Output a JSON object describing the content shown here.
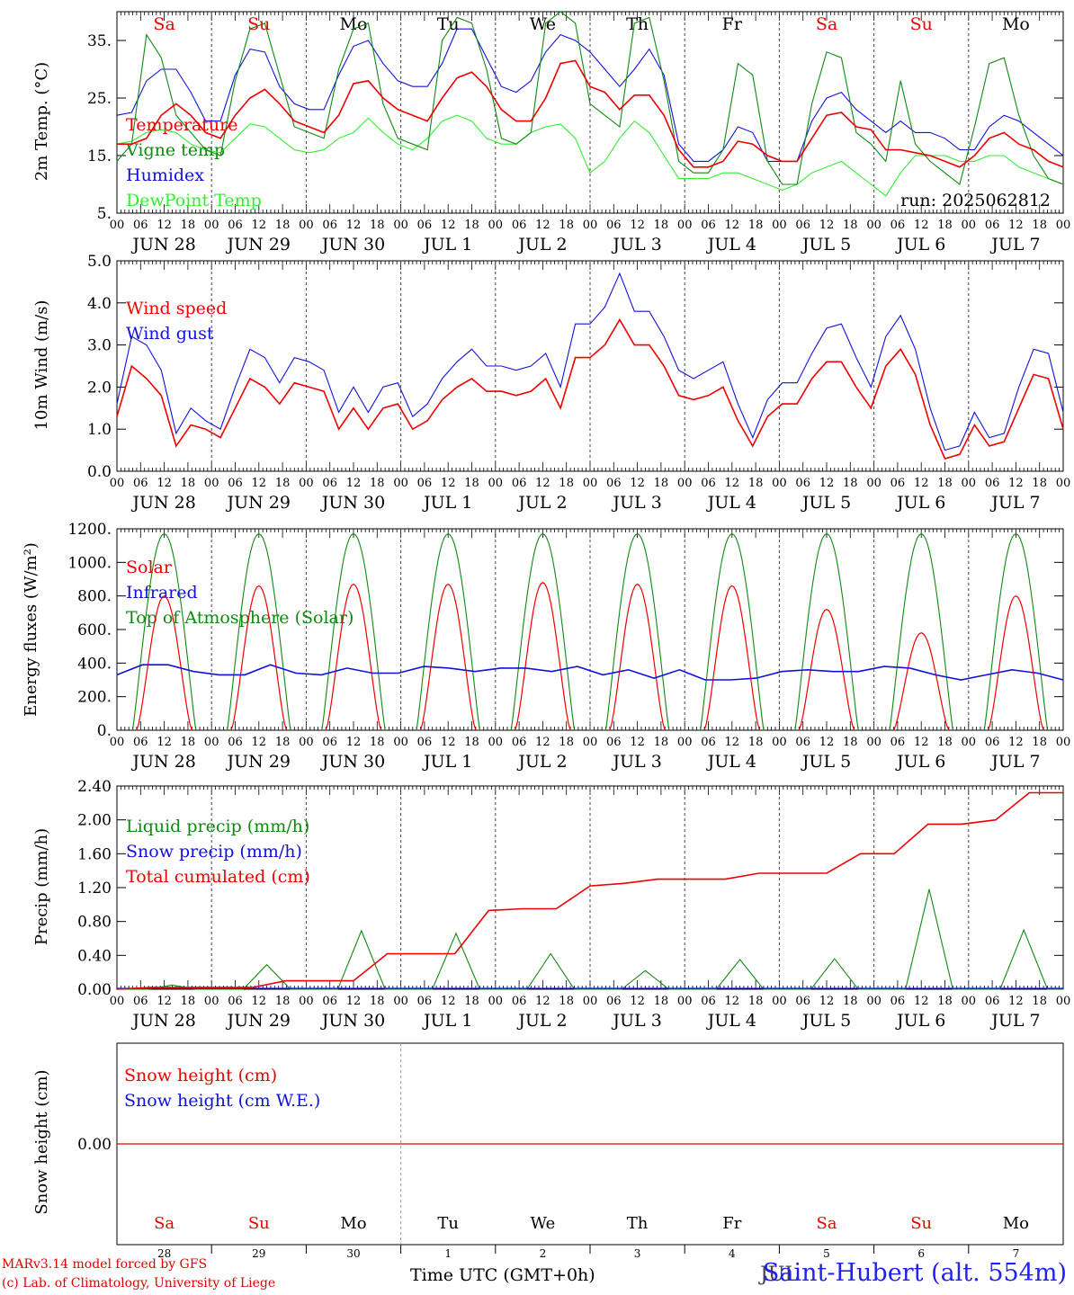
{
  "chart_data": [
    {
      "type": "line",
      "ylabel": "2m Temp. (°C)",
      "yticks": [
        "5.",
        "15.",
        "25.",
        "35."
      ],
      "ylim": [
        5,
        40
      ],
      "run_label": "run: 2025062812",
      "x_hours": "0..240 step 6 (hours from JUN 28 00 UTC)",
      "series": [
        {
          "name": "Temperature",
          "color": "#ee0000",
          "values": [
            17,
            17,
            18,
            22,
            24,
            22,
            19,
            18,
            22,
            25,
            26.5,
            24,
            21,
            20,
            19,
            22,
            27.5,
            28,
            25,
            23,
            22,
            21,
            25,
            28.5,
            29.5,
            27,
            23,
            21,
            21,
            25,
            31,
            31.5,
            27,
            26,
            23,
            25.5,
            25.5,
            22,
            16,
            13,
            13,
            14,
            17.5,
            17,
            15,
            14,
            14,
            18,
            22,
            22.5,
            20,
            19.5,
            16,
            16,
            15.5,
            15,
            14,
            13,
            15,
            18,
            19,
            17,
            16,
            14,
            13
          ]
        },
        {
          "name": "Vigne temp",
          "color": "#118811",
          "values": [
            14,
            17,
            36,
            32,
            22,
            19,
            16,
            15,
            28,
            37,
            38,
            29,
            20,
            19,
            18,
            30,
            37,
            38,
            24,
            18,
            17,
            16,
            35,
            39,
            38,
            30,
            18,
            17,
            19,
            38,
            40,
            38,
            24,
            22,
            20,
            38,
            39,
            28,
            14,
            12,
            12,
            16,
            31,
            29,
            14,
            10,
            10,
            24,
            33,
            32,
            19,
            17,
            14,
            28,
            17,
            14,
            12,
            10,
            20,
            31,
            32,
            22,
            15,
            11,
            10
          ]
        },
        {
          "name": "Humidex",
          "color": "#1111dd",
          "values": [
            22,
            22.5,
            28,
            30,
            30,
            26,
            21,
            21,
            29,
            33.5,
            33,
            27,
            24,
            23,
            23,
            29,
            34,
            35,
            31,
            28,
            27,
            27,
            31,
            37,
            37,
            32,
            27,
            26,
            28,
            33,
            36,
            35,
            33,
            30,
            27,
            30,
            33.5,
            29,
            17,
            14,
            14,
            16,
            20,
            19,
            14,
            14,
            14,
            21,
            25,
            26,
            23,
            21,
            19,
            21,
            19,
            19,
            18,
            16,
            16,
            20,
            22,
            21,
            19,
            17,
            15
          ]
        },
        {
          "name": "DewPoint Temp",
          "color": "#33ee33",
          "values": [
            17,
            17.5,
            19,
            19.5,
            19,
            17,
            16,
            15.5,
            18,
            20.5,
            20,
            18,
            16,
            15.5,
            16,
            18,
            19,
            21.5,
            19,
            17,
            16,
            18,
            21,
            22,
            21,
            18,
            17,
            17,
            19,
            20,
            20.5,
            18,
            12,
            14,
            18,
            21,
            19,
            15,
            11,
            11,
            11,
            12,
            12,
            11,
            10,
            9,
            10,
            12,
            13,
            14,
            12,
            10,
            8,
            12,
            15,
            15,
            15,
            14,
            14,
            15,
            15,
            13,
            12,
            11,
            10
          ]
        }
      ]
    },
    {
      "type": "line",
      "ylabel": "10m Wind (m/s)",
      "yticks": [
        "0.0",
        "1.0",
        "2.0",
        "3.0",
        "4.0",
        "5.0"
      ],
      "ylim": [
        0,
        5
      ],
      "series": [
        {
          "name": "Wind speed",
          "color": "#ee0000",
          "values": [
            1.3,
            2.5,
            2.2,
            1.8,
            0.6,
            1.1,
            1.0,
            0.8,
            1.5,
            2.2,
            2.0,
            1.6,
            2.1,
            2.0,
            1.9,
            1.0,
            1.5,
            1.0,
            1.5,
            1.6,
            1.0,
            1.2,
            1.7,
            2.0,
            2.2,
            1.9,
            1.9,
            1.8,
            1.9,
            2.2,
            1.5,
            2.7,
            2.7,
            3.0,
            3.6,
            3.0,
            3.0,
            2.5,
            1.8,
            1.7,
            1.8,
            2.0,
            1.2,
            0.6,
            1.3,
            1.6,
            1.6,
            2.2,
            2.6,
            2.6,
            2.0,
            1.5,
            2.5,
            2.9,
            2.3,
            1.1,
            0.3,
            0.4,
            1.1,
            0.6,
            0.7,
            1.5,
            2.3,
            2.2,
            1.0
          ]
        },
        {
          "name": "Wind gust",
          "color": "#1111dd",
          "values": [
            1.6,
            3.2,
            3.0,
            2.4,
            0.9,
            1.5,
            1.2,
            1.0,
            2.0,
            2.9,
            2.7,
            2.1,
            2.7,
            2.6,
            2.4,
            1.4,
            2.0,
            1.4,
            2.0,
            2.1,
            1.3,
            1.6,
            2.2,
            2.6,
            2.9,
            2.5,
            2.5,
            2.4,
            2.5,
            2.8,
            2.0,
            3.5,
            3.5,
            3.9,
            4.7,
            3.8,
            3.8,
            3.2,
            2.4,
            2.2,
            2.4,
            2.6,
            1.6,
            0.8,
            1.7,
            2.1,
            2.1,
            2.8,
            3.4,
            3.5,
            2.7,
            2.0,
            3.2,
            3.7,
            2.9,
            1.5,
            0.5,
            0.6,
            1.4,
            0.8,
            0.9,
            2.0,
            2.9,
            2.8,
            1.4
          ]
        }
      ]
    },
    {
      "type": "line",
      "ylabel": "Energy fluxes (W/m²)",
      "yticks": [
        "0.",
        "200.",
        "400.",
        "600.",
        "800.",
        "1000.",
        "1200."
      ],
      "ylim": [
        0,
        1200
      ],
      "series": [
        {
          "name": "Solar",
          "color": "#ee0000",
          "peaks": [
            800,
            860,
            870,
            870,
            880,
            870,
            860,
            720,
            580,
            800
          ]
        },
        {
          "name": "Infrared",
          "color": "#1111dd",
          "values": [
            330,
            390,
            390,
            350,
            330,
            330,
            390,
            340,
            330,
            370,
            340,
            340,
            380,
            370,
            350,
            370,
            370,
            350,
            380,
            330,
            360,
            310,
            360,
            300,
            300,
            310,
            350,
            360,
            350,
            350,
            380,
            370,
            330,
            300,
            330,
            360,
            340,
            300
          ]
        },
        {
          "name": "Top of Atmosphere (Solar)",
          "color": "#118811",
          "peak": 1170
        }
      ]
    },
    {
      "type": "line",
      "ylabel": "Precip (mm/h)",
      "yticks": [
        "0.00",
        "0.40",
        "0.80",
        "1.20",
        "1.60",
        "2.00",
        "2.40"
      ],
      "ylim": [
        0,
        2.4
      ],
      "series": [
        {
          "name": "Liquid precip (mm/h)",
          "color": "#118811",
          "peaks": [
            0.05,
            0.29,
            0.69,
            0.66,
            0.42,
            0.22,
            0.35,
            0.36,
            1.18,
            0.7
          ]
        },
        {
          "name": "Snow precip (mm/h)",
          "color": "#1111dd",
          "values": [
            0,
            0
          ]
        },
        {
          "name": "Total cumulated (cm)",
          "color": "#ee0000",
          "values": [
            0,
            0.02,
            0.02,
            0.02,
            0.02,
            0.1,
            0.1,
            0.1,
            0.42,
            0.42,
            0.42,
            0.93,
            0.95,
            0.95,
            1.22,
            1.25,
            1.3,
            1.3,
            1.3,
            1.37,
            1.37,
            1.37,
            1.6,
            1.6,
            1.95,
            1.95,
            2.0,
            2.32,
            2.32
          ]
        }
      ]
    },
    {
      "type": "line",
      "ylabel": "Snow height (cm)",
      "yticks": [
        "0.00"
      ],
      "series": [
        {
          "name": "Snow height (cm)",
          "color": "#ee0000",
          "values": [
            0,
            0
          ]
        },
        {
          "name": "Snow height (cm W.E.)",
          "color": "#1111dd",
          "values": []
        }
      ]
    }
  ],
  "days": {
    "weekday": [
      "Sa",
      "Su",
      "Mo",
      "Tu",
      "We",
      "Th",
      "Fr",
      "Sa",
      "Su",
      "Mo"
    ],
    "weekday_colors": [
      "#ee0000",
      "#ee0000",
      "#000000",
      "#000000",
      "#000000",
      "#000000",
      "#000000",
      "#ee0000",
      "#ee0000",
      "#000000"
    ],
    "date": [
      "JUN 28",
      "JUN 29",
      "JUN 30",
      "JUL  1",
      "JUL  2",
      "JUL  3",
      "JUL  4",
      "JUL  5",
      "JUL  6",
      "JUL  7"
    ],
    "daynum": [
      "28",
      "29",
      "30",
      "1",
      "2",
      "3",
      "4",
      "5",
      "6",
      "7"
    ],
    "hours": [
      "00",
      "06",
      "12",
      "18"
    ],
    "hours_last": "00"
  },
  "footer": {
    "line1": "MARv3.14 model forced by GFS",
    "line2": "(c) Lab. of Climatology, University of Liege",
    "axis_title": "Time UTC (GMT+0h)",
    "station": "Saint-Hubert (alt. 554m)",
    "month_overlay": "JUL"
  }
}
